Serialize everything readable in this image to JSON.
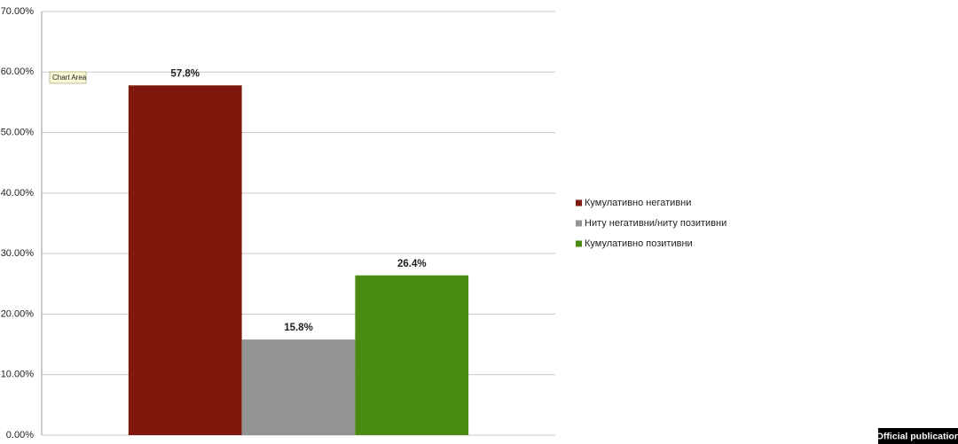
{
  "chart_data": {
    "type": "bar",
    "categories": [
      null
    ],
    "series": [
      {
        "name": "Кумулативно негативни",
        "color": "#7f190d",
        "values": [
          57.8
        ],
        "value_labels": [
          "57.8%"
        ]
      },
      {
        "name": "Ниту негативни/ниту позитивни",
        "color": "#939393",
        "values": [
          15.8
        ],
        "value_labels": [
          "15.8%"
        ]
      },
      {
        "name": "Кумулативно позитивни",
        "color": "#4a8c11",
        "values": [
          26.4
        ],
        "value_labels": [
          "26.4%"
        ]
      }
    ],
    "ylim": [
      0,
      70
    ],
    "yticks": [
      {
        "value": 0,
        "label": "0.00%"
      },
      {
        "value": 10,
        "label": "10.00%"
      },
      {
        "value": 20,
        "label": "20.00%"
      },
      {
        "value": 30,
        "label": "30.00%"
      },
      {
        "value": 40,
        "label": "40.00%"
      },
      {
        "value": 50,
        "label": "50.00%"
      },
      {
        "value": 60,
        "label": "60.00%"
      },
      {
        "value": 70,
        "label": "70.00%"
      }
    ],
    "grid": true,
    "legend": "right",
    "annotations": {
      "tooltip": "Chart Area",
      "badge": "Official publication"
    }
  }
}
